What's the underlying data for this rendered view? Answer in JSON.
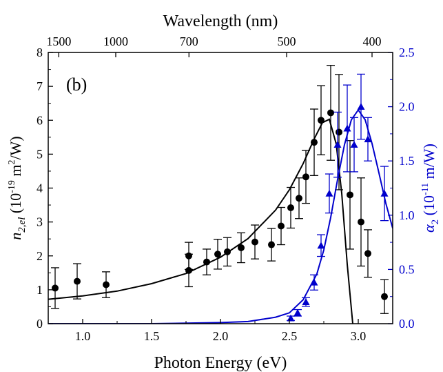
{
  "chart_data": {
    "type": "scatter",
    "panel_label": "(b)",
    "xlabel": "Photon Energy (eV)",
    "xlim": [
      0.75,
      3.25
    ],
    "x_ticks": [
      1.0,
      1.5,
      2.0,
      2.5,
      3.0
    ],
    "x_tick_labels": [
      "1.0",
      "1.5",
      "2.0",
      "2.5",
      "3.0"
    ],
    "top_axis": {
      "label": "Wavelength (nm)",
      "tick_labels": [
        "1500",
        "1000",
        "700",
        "500",
        "400"
      ],
      "tick_wavelengths_nm": [
        1500,
        1000,
        700,
        500,
        400
      ]
    },
    "left_axis": {
      "label_main": "n",
      "label_sub": "2,el",
      "label_rest_open": " (10",
      "label_exp": "-19",
      "label_rest_mid": " m",
      "label_exp2": "2",
      "label_rest_close": "/W)",
      "ylim": [
        0,
        8
      ],
      "ticks": [
        0,
        1,
        2,
        3,
        4,
        5,
        6,
        7,
        8
      ],
      "tick_labels": [
        "0",
        "1",
        "2",
        "3",
        "4",
        "5",
        "6",
        "7",
        "8"
      ],
      "color": "#000000"
    },
    "right_axis": {
      "label_main": "α",
      "label_sub": "2",
      "label_rest_open": " (10",
      "label_exp": "-11",
      "label_rest_close": " m/W)",
      "ylim": [
        0,
        2.5
      ],
      "ticks": [
        0,
        0.5,
        1.0,
        1.5,
        2.0,
        2.5
      ],
      "tick_labels": [
        "0.0",
        "0.5",
        "1.0",
        "1.5",
        "2.0",
        "2.5"
      ],
      "color": "#0000cc"
    },
    "series": [
      {
        "axis": "left",
        "marker": "circle",
        "color": "#000000",
        "x": [
          0.8,
          0.96,
          1.17,
          1.77,
          1.77,
          1.9,
          1.98,
          2.05,
          2.15,
          2.25,
          2.37,
          2.44,
          2.51,
          2.57,
          2.62,
          2.68,
          2.73,
          2.8,
          2.86,
          2.94,
          3.02,
          3.07,
          3.19
        ],
        "y": [
          1.05,
          1.25,
          1.15,
          1.57,
          2.0,
          1.82,
          2.05,
          2.12,
          2.24,
          2.41,
          2.33,
          2.88,
          3.42,
          3.7,
          4.33,
          5.35,
          6.0,
          6.22,
          5.65,
          3.8,
          3.0,
          2.07,
          0.8
        ],
        "err": [
          0.6,
          0.52,
          0.38,
          0.48,
          0.4,
          0.38,
          0.44,
          0.42,
          0.44,
          0.5,
          0.48,
          0.55,
          0.6,
          0.6,
          0.78,
          0.98,
          1.02,
          1.4,
          1.7,
          1.6,
          1.3,
          0.7,
          0.5
        ]
      },
      {
        "axis": "left",
        "type": "line",
        "color": "#000000",
        "x": [
          0.75,
          1.0,
          1.25,
          1.5,
          1.75,
          2.0,
          2.2,
          2.4,
          2.5,
          2.6,
          2.68,
          2.74,
          2.79,
          2.84,
          2.88,
          2.92,
          2.96
        ],
        "y": [
          0.72,
          0.82,
          0.96,
          1.18,
          1.48,
          1.96,
          2.51,
          3.35,
          3.95,
          4.72,
          5.45,
          5.93,
          6.03,
          5.3,
          3.85,
          1.75,
          0.0
        ]
      },
      {
        "axis": "right",
        "marker": "triangle",
        "color": "#0000cc",
        "x": [
          2.51,
          2.56,
          2.62,
          2.68,
          2.73,
          2.79,
          2.85,
          2.92,
          2.97,
          3.02,
          3.07,
          3.19
        ],
        "y": [
          0.05,
          0.1,
          0.2,
          0.38,
          0.72,
          1.2,
          1.65,
          1.8,
          1.65,
          2.0,
          1.7,
          1.2
        ],
        "err": [
          0.02,
          0.03,
          0.04,
          0.07,
          0.1,
          0.18,
          0.3,
          0.4,
          0.25,
          0.3,
          0.2,
          0.25
        ]
      },
      {
        "axis": "right",
        "type": "line",
        "color": "#0000cc",
        "x": [
          0.75,
          1.5,
          2.0,
          2.2,
          2.4,
          2.5,
          2.6,
          2.7,
          2.75,
          2.8,
          2.85,
          2.9,
          2.95,
          3.0,
          3.05,
          3.1,
          3.15,
          3.2,
          3.25
        ],
        "y": [
          0.0,
          0.0,
          0.01,
          0.02,
          0.06,
          0.1,
          0.22,
          0.46,
          0.68,
          0.98,
          1.33,
          1.65,
          1.88,
          1.97,
          1.88,
          1.66,
          1.39,
          1.11,
          0.88
        ]
      }
    ]
  }
}
